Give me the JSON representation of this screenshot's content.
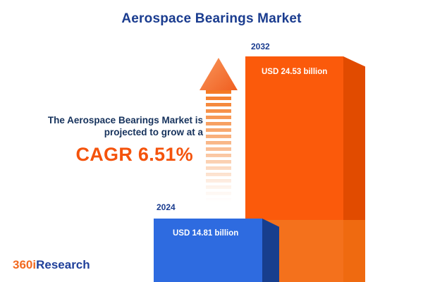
{
  "title": "Aerospace Bearings Market",
  "description": {
    "line1": "The Aerospace Bearings Market is",
    "line2": "projected to grow at a",
    "cagr": "CAGR 6.51%"
  },
  "chart_data": {
    "type": "bar",
    "title": "Aerospace Bearings Market",
    "categories": [
      "2024",
      "2032"
    ],
    "values": [
      14.81,
      24.53
    ],
    "value_labels": [
      "USD 14.81 billion",
      "USD 24.53 billion"
    ],
    "unit": "USD billion",
    "growth_note": "CAGR 6.51%",
    "legend_position": "none",
    "grid": false
  },
  "logo": {
    "part1": "360i",
    "part2": "Research"
  },
  "colors": {
    "navy": "#1A3C8F",
    "text_navy": "#16325C",
    "accent_orange": "#F4530C",
    "bar_2032_front": "#FB5A0B",
    "bar_2032_side": "#E14B00",
    "bar_2024_front": "#2E6BE0",
    "bar_2024_side": "#173E8E",
    "logo_orange": "#F26A21",
    "logo_blue": "#20409A"
  }
}
